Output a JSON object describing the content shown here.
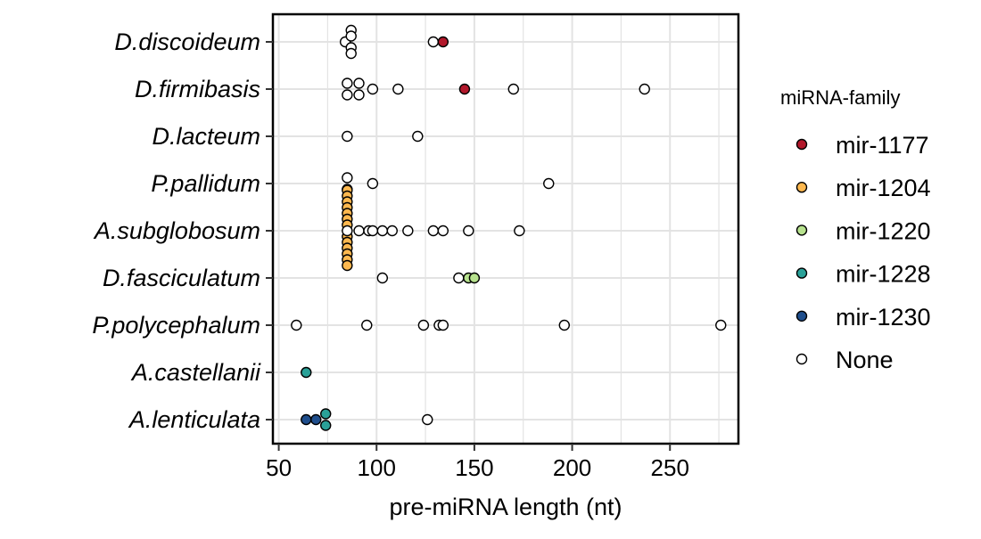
{
  "chart_data": {
    "type": "scatter",
    "title": "",
    "xlabel": "pre-miRNA length (nt)",
    "ylabel": "",
    "xlim": [
      47,
      285
    ],
    "xticks": [
      50,
      100,
      150,
      200,
      250
    ],
    "x_tick_labels": [
      "50",
      "100",
      "150",
      "200",
      "250"
    ],
    "grid": true,
    "legend_position": "right",
    "categories": [
      "D.discoideum",
      "D.firmibasis",
      "D.lacteum",
      "P.pallidum",
      "A.subglobosum",
      "D.fasciculatum",
      "P.polycephalum",
      "A.castellanii",
      "A.lenticulata"
    ],
    "legend": {
      "title": "miRNA-family",
      "entries": [
        {
          "key": "mir-1177",
          "label": "mir-1177",
          "color": "#b2182b"
        },
        {
          "key": "mir-1204",
          "label": "mir-1204",
          "color": "#fdb84f"
        },
        {
          "key": "mir-1220",
          "label": "mir-1220",
          "color": "#b7e28e"
        },
        {
          "key": "mir-1228",
          "label": "mir-1228",
          "color": "#2aa198"
        },
        {
          "key": "mir-1230",
          "label": "mir-1230",
          "color": "#1f4e8c"
        },
        {
          "key": "none",
          "label": "None",
          "color": "#ffffff"
        }
      ]
    },
    "series": [
      {
        "category": "D.discoideum",
        "points": [
          {
            "x": 84,
            "family": "none",
            "offset": 0
          },
          {
            "x": 87,
            "family": "none",
            "offset": -2
          },
          {
            "x": 87,
            "family": "none",
            "offset": -1
          },
          {
            "x": 87,
            "family": "none",
            "offset": 1
          },
          {
            "x": 87,
            "family": "none",
            "offset": 2
          },
          {
            "x": 129,
            "family": "none",
            "offset": 0
          },
          {
            "x": 134,
            "family": "mir-1177",
            "offset": 0
          }
        ]
      },
      {
        "category": "D.firmibasis",
        "points": [
          {
            "x": 85,
            "family": "none",
            "offset": -1
          },
          {
            "x": 85,
            "family": "none",
            "offset": 1
          },
          {
            "x": 91,
            "family": "none",
            "offset": -1
          },
          {
            "x": 91,
            "family": "none",
            "offset": 1
          },
          {
            "x": 98,
            "family": "none",
            "offset": 0
          },
          {
            "x": 111,
            "family": "none",
            "offset": 0
          },
          {
            "x": 145,
            "family": "mir-1177",
            "offset": 0
          },
          {
            "x": 170,
            "family": "none",
            "offset": 0
          },
          {
            "x": 237,
            "family": "none",
            "offset": 0
          }
        ]
      },
      {
        "category": "D.lacteum",
        "points": [
          {
            "x": 85,
            "family": "none",
            "offset": 0
          },
          {
            "x": 121,
            "family": "none",
            "offset": 0
          }
        ]
      },
      {
        "category": "P.pallidum",
        "points": [
          {
            "x": 85,
            "family": "none",
            "offset": -1
          },
          {
            "x": 85,
            "family": "none",
            "offset": 1
          },
          {
            "x": 98,
            "family": "none",
            "offset": 0
          },
          {
            "x": 188,
            "family": "none",
            "offset": 0
          }
        ]
      },
      {
        "category": "A.subglobosum",
        "points": [
          {
            "x": 85,
            "family": "mir-1204",
            "offset": -7
          },
          {
            "x": 85,
            "family": "mir-1204",
            "offset": -6
          },
          {
            "x": 85,
            "family": "mir-1204",
            "offset": -5
          },
          {
            "x": 85,
            "family": "mir-1204",
            "offset": -4
          },
          {
            "x": 85,
            "family": "mir-1204",
            "offset": -3
          },
          {
            "x": 85,
            "family": "mir-1204",
            "offset": -2
          },
          {
            "x": 85,
            "family": "mir-1204",
            "offset": -1
          },
          {
            "x": 85,
            "family": "mir-1204",
            "offset": 1
          },
          {
            "x": 85,
            "family": "mir-1204",
            "offset": 2
          },
          {
            "x": 85,
            "family": "mir-1204",
            "offset": 3
          },
          {
            "x": 85,
            "family": "mir-1204",
            "offset": 4
          },
          {
            "x": 85,
            "family": "mir-1204",
            "offset": 5
          },
          {
            "x": 85,
            "family": "mir-1204",
            "offset": 6
          },
          {
            "x": 85,
            "family": "none",
            "offset": 0
          },
          {
            "x": 91,
            "family": "none",
            "offset": 0
          },
          {
            "x": 96,
            "family": "none",
            "offset": 0
          },
          {
            "x": 98,
            "family": "none",
            "offset": 0
          },
          {
            "x": 103,
            "family": "none",
            "offset": 0
          },
          {
            "x": 108,
            "family": "none",
            "offset": 0
          },
          {
            "x": 116,
            "family": "none",
            "offset": 0
          },
          {
            "x": 129,
            "family": "none",
            "offset": 0
          },
          {
            "x": 134,
            "family": "none",
            "offset": 0
          },
          {
            "x": 147,
            "family": "none",
            "offset": 0
          },
          {
            "x": 173,
            "family": "none",
            "offset": 0
          }
        ]
      },
      {
        "category": "D.fasciculatum",
        "points": [
          {
            "x": 103,
            "family": "none",
            "offset": 0
          },
          {
            "x": 142,
            "family": "none",
            "offset": 0
          },
          {
            "x": 147,
            "family": "mir-1220",
            "offset": 0
          },
          {
            "x": 150,
            "family": "mir-1220",
            "offset": 0
          }
        ]
      },
      {
        "category": "P.polycephalum",
        "points": [
          {
            "x": 59,
            "family": "none",
            "offset": 0
          },
          {
            "x": 95,
            "family": "none",
            "offset": 0
          },
          {
            "x": 124,
            "family": "none",
            "offset": 0
          },
          {
            "x": 132,
            "family": "none",
            "offset": 0
          },
          {
            "x": 134,
            "family": "none",
            "offset": 0
          },
          {
            "x": 196,
            "family": "none",
            "offset": 0
          },
          {
            "x": 276,
            "family": "none",
            "offset": 0
          }
        ]
      },
      {
        "category": "A.castellanii",
        "points": [
          {
            "x": 64,
            "family": "mir-1228",
            "offset": 0
          }
        ]
      },
      {
        "category": "A.lenticulata",
        "points": [
          {
            "x": 64,
            "family": "mir-1230",
            "offset": 0
          },
          {
            "x": 69,
            "family": "mir-1230",
            "offset": 0
          },
          {
            "x": 74,
            "family": "mir-1228",
            "offset": -1
          },
          {
            "x": 74,
            "family": "mir-1228",
            "offset": 1
          },
          {
            "x": 126,
            "family": "none",
            "offset": 0
          }
        ]
      }
    ]
  }
}
